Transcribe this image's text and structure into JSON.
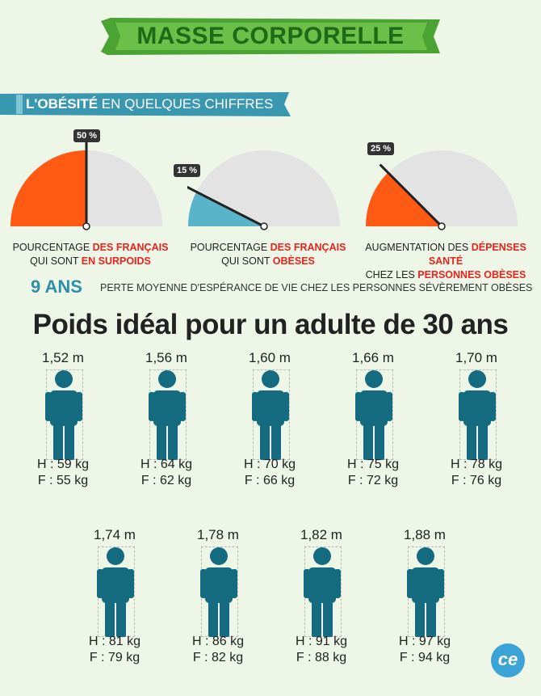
{
  "banner": {
    "title": "MASSE CORPORELLE"
  },
  "section": {
    "title_bold": "L'OBÉSITÉ",
    "title_rest": "EN QUELQUES CHIFFRES"
  },
  "gauges": [
    {
      "percent": "50 %",
      "value": 0.5,
      "fill": "#ff5a14",
      "caption_line1_plain": "POURCENTAGE ",
      "caption_line1_red": "DES FRANÇAIS",
      "caption_line2_plain": "QUI SONT ",
      "caption_line2_red": "EN SURPOIDS"
    },
    {
      "percent": "15 %",
      "value": 0.15,
      "fill": "#5ab4c9",
      "caption_line1_plain": "POURCENTAGE ",
      "caption_line1_red": "DES FRANÇAIS",
      "caption_line2_plain": "QUI SONT ",
      "caption_line2_red": "OBÈSES"
    },
    {
      "percent": "25 %",
      "value": 0.25,
      "fill": "#ff5a14",
      "caption_line1_plain": "AUGMENTATION DES ",
      "caption_line1_red": "DÉPENSES SANTÉ",
      "caption_line2_plain": "CHEZ LES ",
      "caption_line2_red": "PERSONNES OBÈSES"
    }
  ],
  "life": {
    "number": "9 ANS",
    "text": "PERTE MOYENNE D'ESPÉRANCE DE VIE CHEZ LES PERSONNES SÉVÈREMENT OBÈSES"
  },
  "ideal": {
    "title": "Poids idéal pour un adulte de 30 ans"
  },
  "people": [
    {
      "height": "1,52 m",
      "h": "H : 59 kg",
      "f": "F : 55 kg"
    },
    {
      "height": "1,56 m",
      "h": "H : 64 kg",
      "f": "F : 62 kg"
    },
    {
      "height": "1,60 m",
      "h": "H : 70 kg",
      "f": "F : 66 kg"
    },
    {
      "height": "1,66 m",
      "h": "H : 75 kg",
      "f": "F : 72 kg"
    },
    {
      "height": "1,70 m",
      "h": "H : 78 kg",
      "f": "F : 76 kg"
    },
    {
      "height": "1,74 m",
      "h": "H : 81 kg",
      "f": "F : 79 kg"
    },
    {
      "height": "1,78 m",
      "h": "H : 86 kg",
      "f": "F : 82 kg"
    },
    {
      "height": "1,82 m",
      "h": "H : 91 kg",
      "f": "F : 88 kg"
    },
    {
      "height": "1,88 m",
      "h": "H : 97 kg",
      "f": "F : 94 kg"
    }
  ],
  "logo": {
    "text": "ce"
  },
  "colors": {
    "banner_green": "#3f9b2c",
    "title_green": "#1f6a17",
    "section_blue": "#2f8fa8",
    "figure_teal": "#156c80",
    "accent_red": "#e8231b",
    "gauge_grey": "#e3e3e3"
  }
}
